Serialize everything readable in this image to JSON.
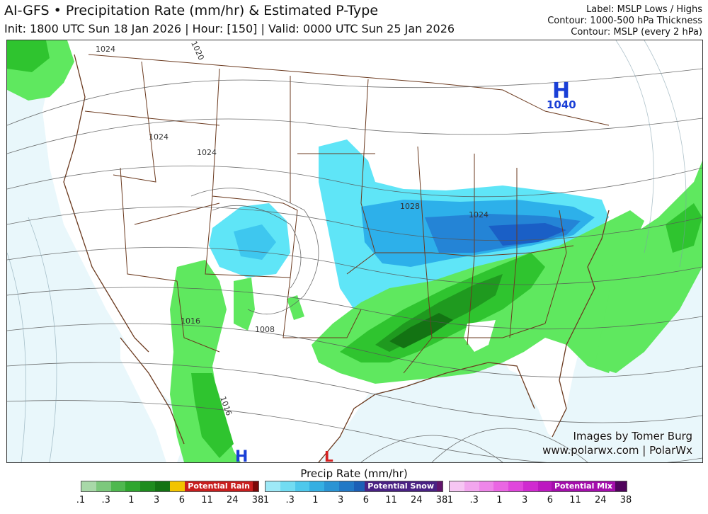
{
  "header": {
    "title": "AI-GFS • Precipitation Rate (mm/hr) & Estimated P-Type",
    "subtitle": "Init: 1800 UTC Sun 18 Jan 2026 | Hour: [150] | Valid: 0000 UTC Sun 25 Jan 2026",
    "right_labels": [
      "Label: MSLP Lows / Highs",
      "Contour: 1000-500 hPa Thickness",
      "Contour: MSLP (every 2 hPa)"
    ]
  },
  "map": {
    "high_label": "H",
    "high_value": "1040",
    "high_bottom_label": "H",
    "low_bottom_label": "L",
    "isobar_labels": [
      "1024",
      "1020",
      "1024",
      "1024",
      "1028",
      "1024",
      "1016",
      "1008",
      "1016"
    ],
    "colors": {
      "rain_light": "#7cf07c",
      "rain_mid": "#2ec22e",
      "rain_dark": "#138a13",
      "snow_light": "#6fe6f5",
      "snow_mid": "#2fb3e8",
      "snow_dark": "#1a6fd1",
      "ocean": "#e9f7fb",
      "land": "#ffffff",
      "border": "#6b3a1f",
      "high_color": "#1a3fd6",
      "low_color": "#d62020"
    }
  },
  "credit": {
    "line1": "Images by Tomer Burg",
    "line2": "www.polarwx.com | PolarWx"
  },
  "legend": {
    "title": "Precip Rate (mm/hr)",
    "rain": {
      "label": "Potential Rain",
      "colors": [
        "#a8d8a8",
        "#7cc87c",
        "#4fb84f",
        "#2ea62e",
        "#1e8c1e",
        "#137313",
        "#f2c400",
        "#f29500",
        "#e85a00",
        "#c81e1e",
        "#a01010",
        "#7a0808"
      ],
      "ticks": [
        ".1",
        ".3",
        "1",
        "3",
        "6",
        "11",
        "24",
        "38"
      ]
    },
    "snow": {
      "label": "Potential Snow",
      "colors": [
        "#9ee9f7",
        "#72dcf2",
        "#4ec8ec",
        "#35afe2",
        "#2a94d4",
        "#2279c6",
        "#1c5fb6",
        "#2a3fa3",
        "#3d2d92",
        "#4a2284",
        "#571a78",
        "#62146c"
      ],
      "ticks": [
        ".1",
        ".3",
        "1",
        "3",
        "6",
        "11",
        "24",
        "38"
      ]
    },
    "mix": {
      "label": "Potential Mix",
      "colors": [
        "#f6c6f3",
        "#f2a6ee",
        "#ee86e9",
        "#ea66e3",
        "#e046dc",
        "#d02ad0",
        "#bc18c0",
        "#a40eac",
        "#8c0896",
        "#760682",
        "#62046e",
        "#50035c"
      ],
      "ticks": [
        ".1",
        ".3",
        "1",
        "3",
        "6",
        "11",
        "24",
        "38"
      ]
    }
  }
}
